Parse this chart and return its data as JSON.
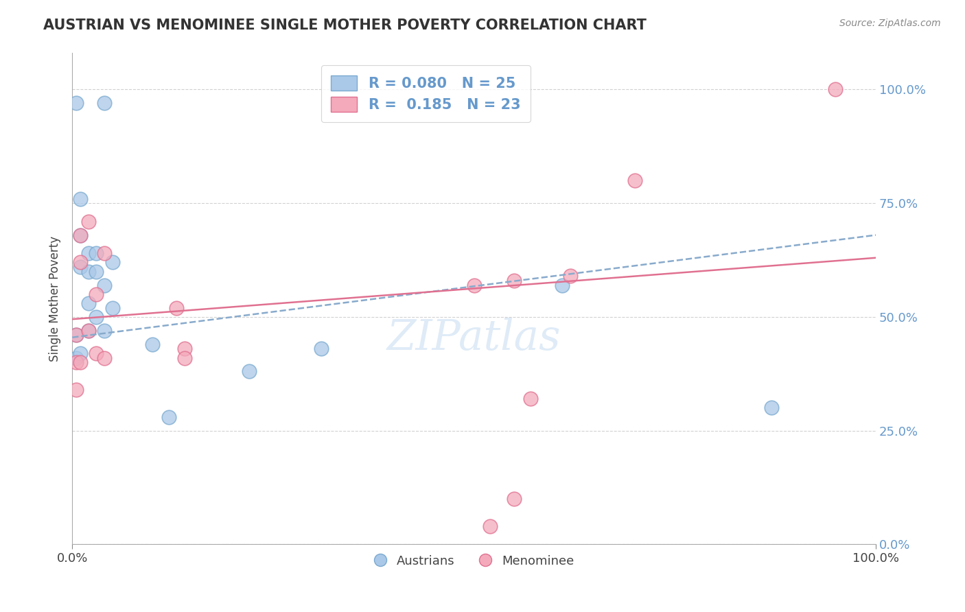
{
  "title": "AUSTRIAN VS MENOMINEE SINGLE MOTHER POVERTY CORRELATION CHART",
  "source": "Source: ZipAtlas.com",
  "ylabel": "Single Mother Poverty",
  "xlim": [
    0.0,
    1.0
  ],
  "ylim": [
    0.0,
    1.08
  ],
  "legend_R_blue": "0.080",
  "legend_N_blue": "25",
  "legend_R_pink": "0.185",
  "legend_N_pink": "23",
  "blue_scatter_x": [
    0.005,
    0.04,
    0.005,
    0.005,
    0.01,
    0.01,
    0.01,
    0.01,
    0.02,
    0.02,
    0.02,
    0.02,
    0.03,
    0.03,
    0.03,
    0.04,
    0.04,
    0.05,
    0.05,
    0.1,
    0.12,
    0.22,
    0.31,
    0.61,
    0.87
  ],
  "blue_scatter_y": [
    0.97,
    0.97,
    0.46,
    0.41,
    0.76,
    0.68,
    0.61,
    0.42,
    0.64,
    0.6,
    0.53,
    0.47,
    0.64,
    0.6,
    0.5,
    0.57,
    0.47,
    0.62,
    0.52,
    0.44,
    0.28,
    0.38,
    0.43,
    0.57,
    0.3
  ],
  "pink_scatter_x": [
    0.005,
    0.005,
    0.005,
    0.01,
    0.01,
    0.01,
    0.02,
    0.02,
    0.03,
    0.03,
    0.04,
    0.04,
    0.13,
    0.14,
    0.14,
    0.5,
    0.55,
    0.57,
    0.62,
    0.7,
    0.55,
    0.52,
    0.95
  ],
  "pink_scatter_y": [
    0.46,
    0.4,
    0.34,
    0.68,
    0.62,
    0.4,
    0.71,
    0.47,
    0.55,
    0.42,
    0.64,
    0.41,
    0.52,
    0.43,
    0.41,
    0.57,
    0.58,
    0.32,
    0.59,
    0.8,
    0.1,
    0.04,
    1.0
  ],
  "blue_trend_x0": 0.0,
  "blue_trend_y0": 0.455,
  "blue_trend_x1": 1.0,
  "blue_trend_y1": 0.68,
  "pink_trend_x0": 0.0,
  "pink_trend_y0": 0.495,
  "pink_trend_x1": 1.0,
  "pink_trend_y1": 0.63,
  "blue_color": "#aac8e8",
  "blue_edge_color": "#7aaad0",
  "pink_color": "#f4aabb",
  "pink_edge_color": "#e07090",
  "blue_line_color": "#88aacc",
  "pink_line_color": "#e07090",
  "watermark": "ZIPatlas",
  "background_color": "#ffffff",
  "grid_color": "#cccccc",
  "right_tick_color": "#6699cc",
  "title_color": "#333333",
  "source_color": "#888888"
}
